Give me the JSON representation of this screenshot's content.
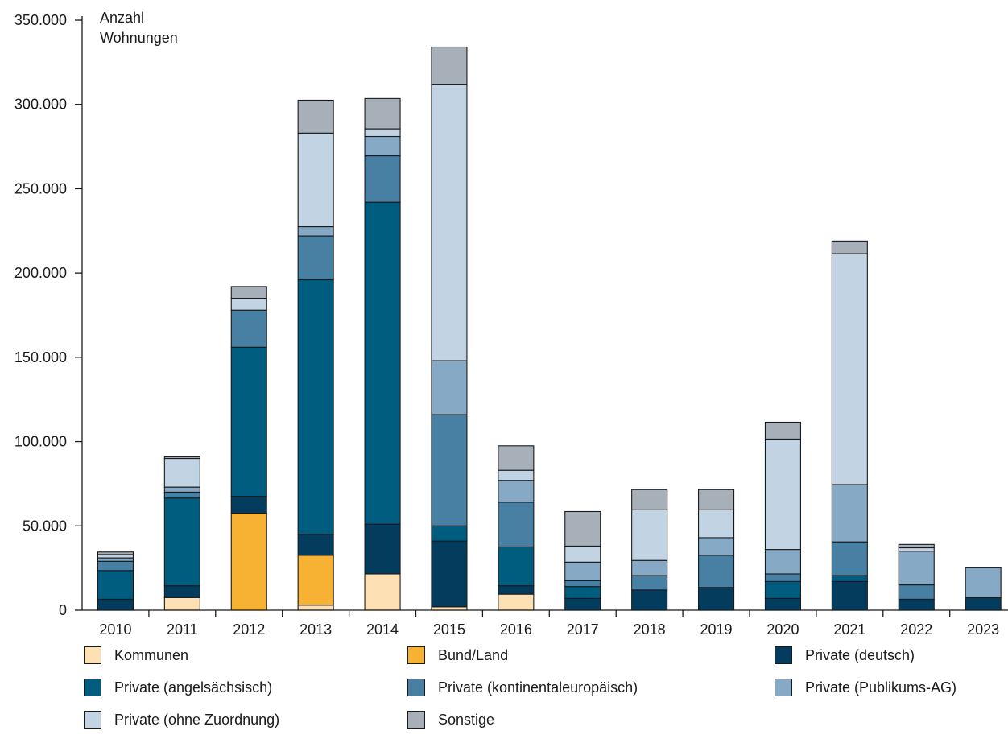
{
  "chart_data": {
    "type": "bar",
    "stacked": true,
    "ylabel": "Anzahl\nWohnungen",
    "ylabel_lines": [
      "Anzahl",
      "Wohnungen"
    ],
    "ylim": [
      0,
      350000
    ],
    "yticks": [
      0,
      50000,
      100000,
      150000,
      200000,
      250000,
      300000,
      350000
    ],
    "ytick_labels": [
      "0",
      "50.000",
      "100.000",
      "150.000",
      "200.000",
      "250.000",
      "300.000",
      "350.000"
    ],
    "categories": [
      "2010",
      "2011",
      "2012",
      "2013",
      "2014",
      "2015",
      "2016",
      "2017",
      "2018",
      "2019",
      "2020",
      "2021",
      "2022",
      "2023"
    ],
    "legend_position": "bottom",
    "series": [
      {
        "name": "Kommunen",
        "color": "#fde1b5",
        "values": [
          0,
          7500,
          0,
          3000,
          21500,
          2000,
          9500,
          0,
          0,
          0,
          0,
          0,
          0,
          0
        ]
      },
      {
        "name": "Bund/Land",
        "color": "#f7b234",
        "values": [
          0,
          0,
          57500,
          29500,
          0,
          0,
          0,
          0,
          0,
          0,
          0,
          0,
          0,
          0
        ]
      },
      {
        "name": "Private (deutsch)",
        "color": "#043c5e",
        "values": [
          6500,
          7000,
          10000,
          12500,
          29500,
          39000,
          5000,
          7000,
          12000,
          13500,
          7000,
          17000,
          6500,
          7500
        ]
      },
      {
        "name": "Private (angelsächsisch)",
        "color": "#015d7f",
        "values": [
          17000,
          52000,
          88500,
          151000,
          191000,
          9000,
          23000,
          7000,
          0,
          0,
          10000,
          3500,
          0,
          0
        ]
      },
      {
        "name": "Private (kontinentaleuropäisch)",
        "color": "#4780a3",
        "values": [
          5500,
          3500,
          22000,
          26000,
          27500,
          66000,
          26500,
          3500,
          8500,
          19000,
          4500,
          20000,
          8500,
          0
        ]
      },
      {
        "name": "Private (Publikums-AG)",
        "color": "#86a9c5",
        "values": [
          2000,
          3000,
          0,
          5500,
          11500,
          32000,
          13000,
          11000,
          9000,
          10500,
          14500,
          34000,
          20000,
          18000
        ]
      },
      {
        "name": "Private (ohne Zuordnung)",
        "color": "#c2d3e3",
        "values": [
          2000,
          17000,
          7000,
          55500,
          4500,
          164000,
          6000,
          9500,
          30000,
          16500,
          65500,
          137000,
          2000,
          0
        ]
      },
      {
        "name": "Sonstige",
        "color": "#a7b0b8",
        "values": [
          1500,
          1000,
          7000,
          19500,
          18000,
          22000,
          14500,
          20500,
          12000,
          12000,
          10000,
          7500,
          2000,
          0
        ]
      }
    ]
  }
}
